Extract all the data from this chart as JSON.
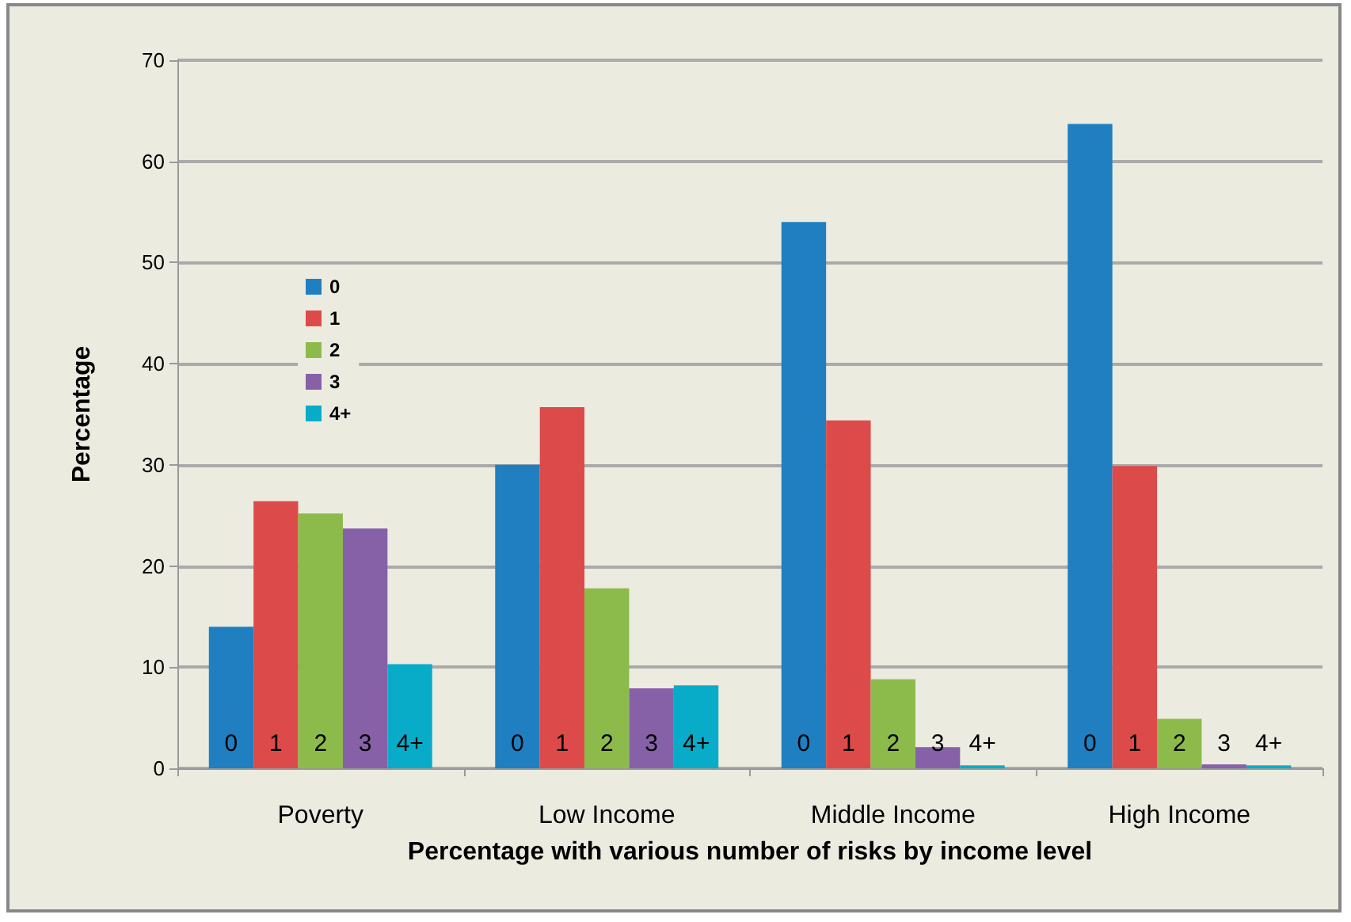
{
  "chart_data": {
    "type": "bar",
    "xlabel": "Percentage with various number of risks by income level",
    "ylabel": "Percentage",
    "categories": [
      "Poverty",
      "Low Income",
      "Middle Income",
      "High Income"
    ],
    "series": [
      {
        "name": "0",
        "color": "#1f7fc1",
        "values": [
          14.0,
          30.0,
          54.0,
          63.7
        ]
      },
      {
        "name": "1",
        "color": "#dc4b4a",
        "values": [
          26.4,
          35.7,
          34.4,
          29.9
        ]
      },
      {
        "name": "2",
        "color": "#8cbb4c",
        "values": [
          25.2,
          17.8,
          8.8,
          4.9
        ]
      },
      {
        "name": "3",
        "color": "#8661a8",
        "values": [
          23.7,
          7.9,
          2.1,
          0.4
        ]
      },
      {
        "name": "4+",
        "color": "#08acc8",
        "values": [
          10.3,
          8.2,
          0.3,
          0.3
        ]
      }
    ],
    "ylim": [
      0,
      70
    ],
    "yticks": [
      0,
      10,
      20,
      30,
      40,
      50,
      60,
      70
    ],
    "grid": "y",
    "legend": "top left"
  }
}
